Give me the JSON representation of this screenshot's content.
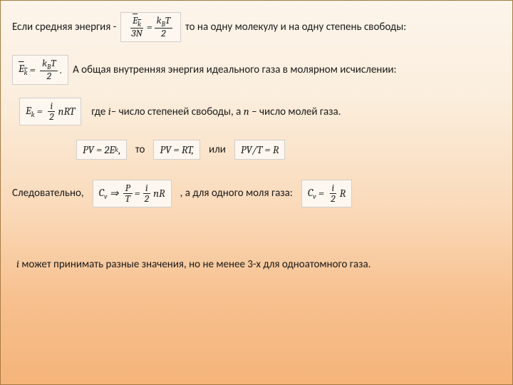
{
  "background": {
    "gradient_stops": [
      "#fcf5eb",
      "#fbeedd",
      "#fad9b8",
      "#f7c08e",
      "#f5b47a"
    ],
    "border_color": "#a67a40"
  },
  "line1": {
    "t1": "Если средняя энергия -",
    "formula": {
      "lhs_num": "E",
      "lhs_num_sub": "k",
      "lhs_den": "3N",
      "eq": "=",
      "rhs_num": "k",
      "rhs_num_sub": "B",
      "rhs_num_tail": "T",
      "rhs_den": "2"
    },
    "t2": "то на одну молекулу и на одну степень свободы:"
  },
  "line2": {
    "formula": {
      "lhs": "E",
      "lhs_sub": "k",
      "eq": "=",
      "rhs_num": "k",
      "rhs_num_sub": "B",
      "rhs_num_tail": "T",
      "rhs_den": "2",
      "tail": "."
    },
    "t1": "А общая внутренняя энергия идеального газа в молярном исчислении:"
  },
  "line3": {
    "formula": {
      "lhs": "E",
      "lhs_sub": "k",
      "eq": "=",
      "mid_num": "i",
      "mid_den": "2",
      "tail": "nRT"
    },
    "t1": "где ",
    "it1": "i",
    "t2": "– число степеней свободы, а ",
    "it2": "n",
    "t3": " – число молей газа."
  },
  "line5": {
    "f1": "PV = 2E",
    "f1_sub": "k",
    "f1_tail": ",",
    "t1": "то",
    "f2": "PV = RT,",
    "t2": "или",
    "f3": "PV/T = R"
  },
  "line6": {
    "t1": "Следовательно,",
    "formula": {
      "lhs": "C",
      "lhs_sub": "v",
      "arrow": "⇒",
      "mid_num": "P",
      "mid_den": "T",
      "eq": "=",
      "r_num": "i",
      "r_den": "2",
      "tail": "nR"
    },
    "t2": ", а для одного моля газа:",
    "formula2": {
      "lhs": "C",
      "lhs_sub": "v",
      "eq": "=",
      "num": "i",
      "den": "2",
      "tail": " R"
    }
  },
  "line7": {
    "it1": "i",
    "t1": " может принимать разные значения, но не менее 3-х для одноатомного газа."
  }
}
